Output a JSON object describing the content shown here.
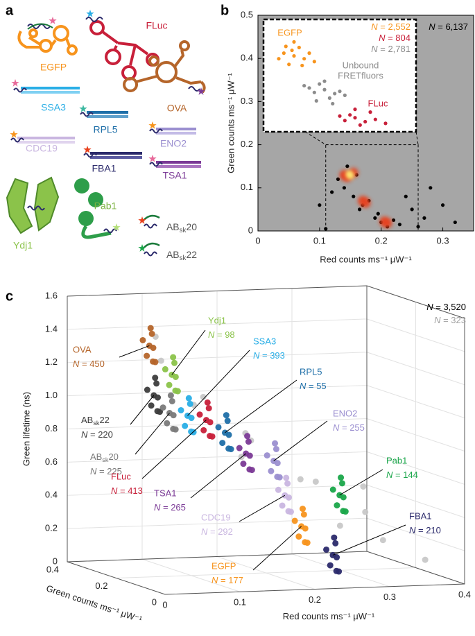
{
  "panel_a": {
    "label": "a",
    "molecules": [
      "EGFP",
      "FLuc",
      "SSA3",
      "OVA",
      "RPL5",
      "CDC19",
      "ENO2",
      "FBA1",
      "TSA1",
      "Ydj1",
      "Pab1",
      "ABsk20",
      "ABsk22"
    ]
  },
  "chart_data": [
    {
      "type": "scatter",
      "panel_label": "b",
      "xlabel": "Red counts ms⁻¹ μW⁻¹",
      "ylabel": "Green counts ms⁻¹ μW⁻¹",
      "xlim": [
        0,
        0.35
      ],
      "ylim": [
        0,
        0.5
      ],
      "xticks": [
        0,
        0.1,
        0.2,
        0.3
      ],
      "yticks": [
        0,
        0.1,
        0.2,
        0.3,
        0.4,
        0.5
      ],
      "background": "#a6a6a6",
      "annotations": [
        {
          "text": "N = 6,137",
          "color": "#000000"
        }
      ],
      "series": [
        {
          "color": "#000000",
          "x": [
            0.13,
            0.145,
            0.16,
            0.14,
            0.155,
            0.17,
            0.18,
            0.165,
            0.19,
            0.2,
            0.21,
            0.22,
            0.195,
            0.23,
            0.24,
            0.26,
            0.28,
            0.3,
            0.32,
            0.1,
            0.12,
            0.25,
            0.27,
            0.11
          ],
          "y": [
            0.12,
            0.15,
            0.13,
            0.1,
            0.08,
            0.06,
            0.07,
            0.05,
            0.03,
            0.02,
            0.01,
            0.025,
            0.04,
            0.015,
            0.08,
            0.01,
            0.1,
            0.06,
            0.02,
            0.06,
            0.09,
            0.05,
            0.03,
            0.005
          ]
        },
        {
          "color": "#e8401c",
          "x": [
            0.14,
            0.155,
            0.145,
            0.17,
            0.175,
            0.205,
            0.21
          ],
          "y": [
            0.13,
            0.135,
            0.125,
            0.07,
            0.065,
            0.022,
            0.018
          ]
        },
        {
          "color": "#fff176",
          "x": [
            0.148,
            0.15
          ],
          "y": [
            0.132,
            0.128
          ]
        }
      ]
    },
    {
      "type": "scatter",
      "xlim": [
        0.11,
        0.26
      ],
      "ylim": [
        0,
        0.2
      ],
      "annotations": [
        {
          "text": "EGFP",
          "color": "#f7941d"
        },
        {
          "text": "N = 2,552",
          "color": "#f7941d"
        },
        {
          "text": "N = 804",
          "color": "#c8203a"
        },
        {
          "text": "N = 2,781",
          "color": "#8c8c8c"
        },
        {
          "text": "Unbound",
          "color": "#8c8c8c"
        },
        {
          "text": "FRETfluors",
          "color": "#8c8c8c"
        },
        {
          "text": "FLuc",
          "color": "#c8203a"
        }
      ],
      "series": [
        {
          "color": "#f7941d",
          "x": [
            0.13,
            0.14,
            0.15,
            0.145,
            0.135,
            0.155,
            0.14,
            0.125,
            0.16,
            0.138,
            0.148,
            0.132
          ],
          "y": [
            0.14,
            0.135,
            0.13,
            0.15,
            0.12,
            0.14,
            0.16,
            0.13,
            0.125,
            0.145,
            0.118,
            0.152
          ]
        },
        {
          "color": "#8c8c8c",
          "x": [
            0.16,
            0.17,
            0.18,
            0.165,
            0.175,
            0.185,
            0.155,
            0.19,
            0.17,
            0.162,
            0.178,
            0.15
          ],
          "y": [
            0.07,
            0.075,
            0.068,
            0.085,
            0.06,
            0.072,
            0.078,
            0.065,
            0.09,
            0.055,
            0.05,
            0.082
          ]
        },
        {
          "color": "#c8203a",
          "x": [
            0.19,
            0.2,
            0.21,
            0.195,
            0.205,
            0.22,
            0.185,
            0.215,
            0.23,
            0.2
          ],
          "y": [
            0.02,
            0.025,
            0.018,
            0.03,
            0.012,
            0.022,
            0.028,
            0.035,
            0.015,
            0.04
          ]
        }
      ]
    },
    {
      "type": "scatter3d",
      "panel_label": "c",
      "xlabel": "Red counts ms⁻¹ μW⁻¹",
      "ylabel": "Green counts ms⁻¹ μW⁻¹",
      "zlabel": "Green lifetime (ns)",
      "xlim": [
        0,
        0.4
      ],
      "ylim": [
        0,
        0.4
      ],
      "zlim": [
        0,
        1.6
      ],
      "xticks": [
        0,
        0.1,
        0.2,
        0.3,
        0.4
      ],
      "yticks": [
        0,
        0.2,
        0.4
      ],
      "zticks": [
        0,
        0.2,
        0.4,
        0.6,
        0.8,
        {
          "value": 1,
          "label": "1.0"
        },
        1.2,
        1.4,
        1.6
      ],
      "annotations": [
        {
          "text": "N = 3,520",
          "color": "#000000"
        },
        {
          "text": "N = 323",
          "color": "#a0a0a0"
        }
      ],
      "series": [
        {
          "color": "#c8c8c8",
          "x": [
            0.02,
            0.06,
            0.1,
            0.14,
            0.18,
            0.22,
            0.26,
            0.3,
            0.34,
            0.38,
            0.12,
            0.2,
            0.25,
            0.33
          ],
          "y": [
            0.1,
            0.2,
            0.15,
            0.1,
            0.2,
            0.12,
            0.18,
            0.1,
            0.15,
            0.1,
            0.25,
            0.3,
            0.05,
            0.2
          ],
          "z": [
            1.5,
            1.3,
            1.1,
            0.9,
            0.8,
            0.6,
            0.55,
            0.4,
            0.2,
            0.1,
            1.0,
            0.65,
            0.35,
            0.5
          ]
        },
        {
          "name": "OVA",
          "count_label": "N = 450",
          "color": "#b5652a",
          "x": [
            0.028,
            0.038,
            0.018,
            0.033,
            0.023,
            0.043,
            0.016,
            0.036
          ],
          "y": [
            0.15,
            0.17,
            0.13,
            0.16,
            0.12,
            0.18,
            0.14,
            0.15
          ],
          "z": [
            1.42,
            1.48,
            1.37,
            1.52,
            1.34,
            1.39,
            1.46,
            1.32
          ]
        },
        {
          "name": "Ydj1",
          "count_label": "N = 98",
          "color": "#8bc34a",
          "x": [
            0.058,
            0.068,
            0.048,
            0.063,
            0.053,
            0.073,
            0.046,
            0.066
          ],
          "y": [
            0.15,
            0.17,
            0.13,
            0.16,
            0.12,
            0.18,
            0.14,
            0.15
          ],
          "z": [
            1.24,
            1.3,
            1.19,
            1.34,
            1.16,
            1.21,
            1.28,
            1.14
          ]
        },
        {
          "name": "ABsk22",
          "count_label": "N = 220",
          "color": "#3d3d3d",
          "x": [
            0.034,
            0.044,
            0.024,
            0.039,
            0.029,
            0.049,
            0.022,
            0.042
          ],
          "y": [
            0.15,
            0.17,
            0.13,
            0.16,
            0.12,
            0.18,
            0.14,
            0.15
          ],
          "z": [
            1.12,
            1.18,
            1.07,
            1.22,
            1.04,
            1.09,
            1.16,
            1.02
          ]
        },
        {
          "name": "ABsk20",
          "count_label": "N = 225",
          "color": "#7a7a7a",
          "x": [
            0.055,
            0.065,
            0.045,
            0.06,
            0.05,
            0.07,
            0.043,
            0.063
          ],
          "y": [
            0.15,
            0.17,
            0.13,
            0.16,
            0.12,
            0.18,
            0.14,
            0.15
          ],
          "z": [
            1.01,
            1.07,
            0.96,
            1.11,
            0.93,
            0.98,
            1.05,
            0.91
          ]
        },
        {
          "name": "SSA3",
          "count_label": "N = 393",
          "color": "#29aee6",
          "x": [
            0.079,
            0.089,
            0.069,
            0.084,
            0.074,
            0.094,
            0.067,
            0.087
          ],
          "y": [
            0.15,
            0.17,
            0.13,
            0.16,
            0.12,
            0.18,
            0.14,
            0.15
          ],
          "z": [
            0.99,
            1.05,
            0.94,
            1.09,
            0.91,
            0.96,
            1.03,
            0.89
          ]
        },
        {
          "name": "FLuc",
          "count_label": "N = 413",
          "color": "#c8203a",
          "x": [
            0.104,
            0.114,
            0.094,
            0.109,
            0.099,
            0.119,
            0.092,
            0.112
          ],
          "y": [
            0.15,
            0.17,
            0.13,
            0.16,
            0.12,
            0.18,
            0.14,
            0.15
          ],
          "z": [
            0.96,
            1.02,
            0.91,
            1.06,
            0.88,
            0.93,
            1.0,
            0.86
          ]
        },
        {
          "name": "RPL5",
          "count_label": "N = 55",
          "color": "#1f6fa8",
          "x": [
            0.129,
            0.139,
            0.119,
            0.134,
            0.124,
            0.144,
            0.117,
            0.137
          ],
          "y": [
            0.15,
            0.17,
            0.13,
            0.16,
            0.12,
            0.18,
            0.14,
            0.15
          ],
          "z": [
            0.88,
            0.94,
            0.83,
            0.98,
            0.8,
            0.85,
            0.92,
            0.78
          ]
        },
        {
          "name": "TSA1",
          "count_label": "N = 265",
          "color": "#7b3a96",
          "x": [
            0.157,
            0.167,
            0.147,
            0.162,
            0.152,
            0.172,
            0.145,
            0.165
          ],
          "y": [
            0.15,
            0.17,
            0.13,
            0.16,
            0.12,
            0.18,
            0.14,
            0.15
          ],
          "z": [
            0.75,
            0.81,
            0.7,
            0.85,
            0.67,
            0.72,
            0.79,
            0.65
          ]
        },
        {
          "name": "ENO2",
          "count_label": "N = 255",
          "color": "#9b8fd0",
          "x": [
            0.194,
            0.204,
            0.184,
            0.199,
            0.189,
            0.209,
            0.182,
            0.202
          ],
          "y": [
            0.15,
            0.17,
            0.13,
            0.16,
            0.12,
            0.18,
            0.14,
            0.15
          ],
          "z": [
            0.7,
            0.76,
            0.65,
            0.8,
            0.62,
            0.67,
            0.74,
            0.6
          ]
        },
        {
          "name": "CDC19",
          "count_label": "N = 292",
          "color": "#c9b6e0",
          "x": [
            0.209,
            0.219,
            0.199,
            0.214,
            0.204,
            0.224,
            0.197,
            0.217
          ],
          "y": [
            0.15,
            0.17,
            0.13,
            0.16,
            0.12,
            0.18,
            0.14,
            0.15
          ],
          "z": [
            0.49,
            0.55,
            0.44,
            0.59,
            0.41,
            0.46,
            0.53,
            0.39
          ]
        },
        {
          "name": "EGFP",
          "count_label": "N = 177",
          "color": "#f7941d",
          "x": [
            0.231,
            0.241,
            0.221,
            0.236,
            0.226,
            0.246,
            0.219,
            0.239
          ],
          "y": [
            0.15,
            0.17,
            0.13,
            0.16,
            0.12,
            0.18,
            0.14,
            0.15
          ],
          "z": [
            0.3,
            0.36,
            0.25,
            0.4,
            0.22,
            0.27,
            0.34,
            0.2
          ]
        },
        {
          "name": "Pab1",
          "count_label": "N = 144",
          "color": "#1aa64a",
          "x": [
            0.282,
            0.292,
            0.272,
            0.287,
            0.277,
            0.297,
            0.27,
            0.29
          ],
          "y": [
            0.15,
            0.17,
            0.13,
            0.16,
            0.12,
            0.18,
            0.14,
            0.15
          ],
          "z": [
            0.48,
            0.54,
            0.43,
            0.58,
            0.4,
            0.45,
            0.52,
            0.38
          ]
        },
        {
          "name": "FBA1",
          "count_label": "N = 210",
          "color": "#2b2a6b",
          "x": [
            0.273,
            0.283,
            0.263,
            0.278,
            0.268,
            0.288,
            0.261,
            0.281
          ],
          "y": [
            0.15,
            0.17,
            0.13,
            0.16,
            0.12,
            0.18,
            0.14,
            0.15
          ],
          "z": [
            0.12,
            0.18,
            0.07,
            0.22,
            0.04,
            0.09,
            0.16,
            0.02
          ]
        }
      ]
    }
  ]
}
